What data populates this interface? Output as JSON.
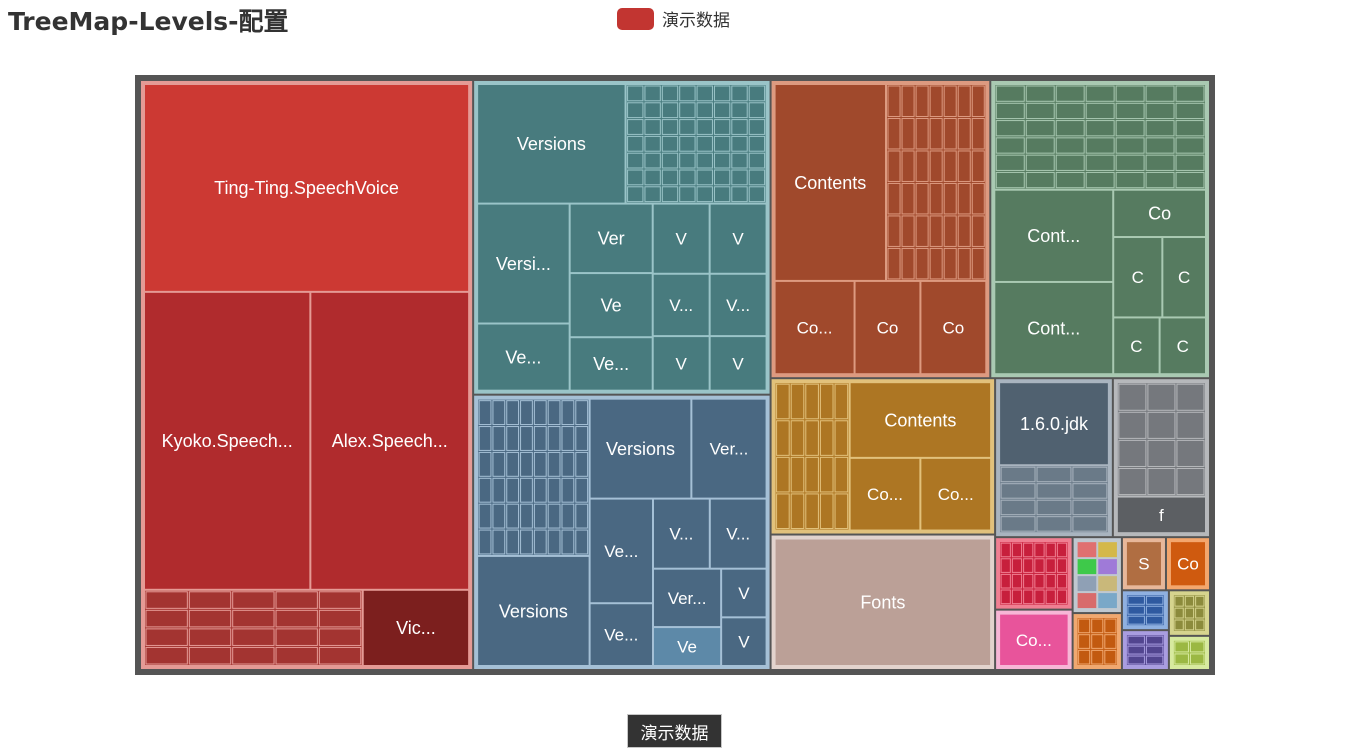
{
  "title": "TreeMap-Levels-配置",
  "legend": {
    "label": "演示数据",
    "color": "#c23531"
  },
  "breadcrumb": {
    "label": "演示数据"
  },
  "chart_data": {
    "type": "treemap",
    "title": "TreeMap-Levels-配置",
    "series_name": "演示数据",
    "nodes": [
      {
        "id": "voices",
        "value": 420,
        "color": "#c23531",
        "border": "#e59a95",
        "children": [
          {
            "label": "Ting-Ting.SpeechVoice",
            "value": 150,
            "color": "#cc3933"
          },
          {
            "label": "Alex.SpeechVoice",
            "value": 105,
            "color": "#b02b2d"
          },
          {
            "label": "Kyoko.SpeechVoice",
            "value": 110,
            "color": "#b02b2d"
          },
          {
            "label": "Vic...",
            "value": 18,
            "color": "#7c1f1e"
          },
          {
            "label": "",
            "value": 37,
            "color": "#a33431",
            "grid": [
              5,
              4
            ]
          }
        ]
      },
      {
        "id": "versions-a",
        "value": 200,
        "color": "#487b7e",
        "border": "#9ac4c8",
        "children": [
          {
            "label": "Versions",
            "value": 40,
            "color": "#487b7e"
          },
          {
            "label": "Versi...",
            "value": 25,
            "color": "#487b7e"
          },
          {
            "label": "Ve...",
            "value": 14,
            "color": "#487b7e"
          },
          {
            "label": "Ver",
            "value": 13,
            "color": "#487b7e"
          },
          {
            "label": "Ve",
            "value": 12,
            "color": "#487b7e"
          },
          {
            "label": "V",
            "value": 9,
            "color": "#487b7e"
          },
          {
            "label": "V",
            "value": 9,
            "color": "#487b7e"
          },
          {
            "label": "Ve...",
            "value": 10,
            "color": "#487b7e"
          },
          {
            "label": "V",
            "value": 7,
            "color": "#487b7e"
          },
          {
            "label": "V",
            "value": 7,
            "color": "#487b7e"
          },
          {
            "label": "Ve...",
            "value": 8,
            "color": "#487b7e"
          },
          {
            "label": "Ve...",
            "value": 8,
            "color": "#487b7e"
          },
          {
            "label": "",
            "value": 38,
            "color": "#487b7e",
            "grid": [
              8,
              7
            ]
          }
        ]
      },
      {
        "id": "contents-a",
        "value": 140,
        "color": "#a0492c",
        "border": "#dd9a80",
        "children": [
          {
            "label": "Contents",
            "value": 50,
            "color": "#a0492c"
          },
          {
            "label": "Co...",
            "value": 17,
            "color": "#a0492c"
          },
          {
            "label": "Co",
            "value": 14,
            "color": "#a0492c"
          },
          {
            "label": "Co",
            "value": 14,
            "color": "#a0492c"
          },
          {
            "label": "",
            "value": 45,
            "color": "#a0492c",
            "grid": [
              7,
              6
            ]
          }
        ]
      },
      {
        "id": "contents-b",
        "value": 140,
        "color": "#567b60",
        "border": "#a9c9b2",
        "children": [
          {
            "label": "Cont...",
            "value": 25,
            "color": "#567b60"
          },
          {
            "label": "Cont...",
            "value": 25,
            "color": "#567b60"
          },
          {
            "label": "Co",
            "value": 10,
            "color": "#567b60"
          },
          {
            "label": "C",
            "value": 9,
            "color": "#567b60"
          },
          {
            "label": "C",
            "value": 8,
            "color": "#567b60"
          },
          {
            "label": "C",
            "value": 6,
            "color": "#567b60"
          },
          {
            "label": "C",
            "value": 6,
            "color": "#567b60"
          },
          {
            "label": "",
            "value": 51,
            "color": "#567b60",
            "grid": [
              7,
              6
            ]
          }
        ]
      },
      {
        "id": "versions-b",
        "value": 175,
        "color": "#4a6882",
        "border": "#a5c0d6",
        "children": [
          {
            "label": "Versions",
            "value": 28,
            "color": "#4a6882"
          },
          {
            "label": "Versions",
            "value": 23,
            "color": "#4a6882"
          },
          {
            "label": "Versions",
            "value": 17,
            "color": "#4a6882"
          },
          {
            "label": "Versions",
            "value": 15,
            "color": "#4a6882"
          },
          {
            "label": "Versi...",
            "value": 9,
            "color": "#4a6882"
          },
          {
            "label": "Versi...",
            "value": 9,
            "color": "#4a6882"
          },
          {
            "label": "Versi...",
            "value": 9,
            "color": "#4a6882"
          },
          {
            "label": "Versi...",
            "value": 9,
            "color": "#4a6882"
          },
          {
            "label": "Ve",
            "value": 6,
            "color": "#5d89a8"
          },
          {
            "label": "V",
            "value": 5,
            "color": "#4a6882"
          },
          {
            "label": "V",
            "value": 5,
            "color": "#4a6882"
          },
          {
            "label": "",
            "value": 40,
            "color": "#4a6882",
            "grid": [
              8,
              6
            ]
          }
        ]
      },
      {
        "id": "contents-c",
        "value": 75,
        "color": "#ad7623",
        "border": "#e2c17b",
        "children": [
          {
            "label": "Contents",
            "value": 25,
            "color": "#ad7623"
          },
          {
            "label": "Co...",
            "value": 12,
            "color": "#ad7623"
          },
          {
            "label": "Co...",
            "value": 12,
            "color": "#ad7623"
          },
          {
            "label": "",
            "value": 26,
            "color": "#ad7623",
            "grid": [
              5,
              4
            ]
          }
        ]
      },
      {
        "id": "fonts",
        "value": 65,
        "color": "#bba097",
        "border": "#e2d3cd",
        "children": [
          {
            "label": "Fonts",
            "value": 65,
            "color": "#bba097"
          }
        ]
      },
      {
        "id": "f-group",
        "value": 33,
        "color": "#5c5f63",
        "border": "#b6b8bb",
        "children": [
          {
            "label": "f",
            "value": 8,
            "color": "#5c5f63"
          },
          {
            "label": "",
            "value": 25,
            "color": "#75787d",
            "grid": [
              3,
              4
            ]
          }
        ]
      },
      {
        "id": "jdk-group",
        "value": 40,
        "color": "#506170",
        "border": "#a9b4bf",
        "children": [
          {
            "label": "1.6.0.jdk",
            "value": 22,
            "color": "#506170"
          },
          {
            "label": "",
            "value": 18,
            "color": "#6a7a88",
            "grid": [
              3,
              4
            ]
          }
        ]
      },
      {
        "id": "misc-red",
        "value": 12,
        "color": "#c71f3c",
        "border": "#f07f92",
        "children": [
          {
            "label": "",
            "value": 12,
            "color": "#c71f3c",
            "grid": [
              6,
              4
            ]
          }
        ]
      },
      {
        "id": "misc-pink",
        "value": 10,
        "color": "#e8549b",
        "border": "#f7b6d6",
        "children": [
          {
            "label": "Co...",
            "value": 10,
            "color": "#e8549b"
          }
        ]
      },
      {
        "id": "misc-orange",
        "value": 6,
        "color": "#c25a10",
        "border": "#f0a870",
        "children": [
          {
            "label": "",
            "value": 6,
            "color": "#c25a10",
            "grid": [
              3,
              3
            ]
          }
        ]
      },
      {
        "id": "misc-sta",
        "value": 5,
        "color": "#b06e42",
        "border": "#e7b79a",
        "children": [
          {
            "label": "Sta",
            "value": 5,
            "color": "#b06e42"
          }
        ]
      },
      {
        "id": "misc-co",
        "value": 5,
        "color": "#cf5a0f",
        "border": "#f3a66d",
        "children": [
          {
            "label": "Co",
            "value": 5,
            "color": "#cf5a0f"
          }
        ]
      },
      {
        "id": "misc-blue",
        "value": 4,
        "color": "#2f5aa0",
        "border": "#8fb0e0",
        "children": [
          {
            "label": "",
            "value": 4,
            "color": "#2f5aa0",
            "grid": [
              2,
              3
            ]
          }
        ]
      },
      {
        "id": "misc-violet",
        "value": 4,
        "color": "#52458f",
        "border": "#a99de0",
        "children": [
          {
            "label": "",
            "value": 4,
            "color": "#52458f",
            "grid": [
              2,
              3
            ]
          }
        ]
      },
      {
        "id": "misc-olive",
        "value": 4,
        "color": "#8c8b3c",
        "border": "#d6d48e",
        "children": [
          {
            "label": "",
            "value": 4,
            "color": "#8c8b3c",
            "grid": [
              3,
              3
            ]
          }
        ]
      },
      {
        "id": "misc-lime",
        "value": 3,
        "color": "#9bb843",
        "border": "#d7ea9f",
        "children": [
          {
            "label": "",
            "value": 3,
            "color": "#9bb843",
            "grid": [
              2,
              2
            ]
          }
        ]
      },
      {
        "id": "misc-tiny",
        "value": 8,
        "color": "#7a8a9a",
        "border": "#c0c8d0",
        "children": [
          {
            "label": "",
            "value": 1,
            "color": "#e07070"
          },
          {
            "label": "",
            "value": 1,
            "color": "#d4b84a"
          },
          {
            "label": "",
            "value": 1,
            "color": "#3ec94a"
          },
          {
            "label": "",
            "value": 1,
            "color": "#9f7ad8"
          },
          {
            "label": "",
            "value": 1,
            "color": "#8fa0b5"
          },
          {
            "label": "",
            "value": 1,
            "color": "#d86b6b"
          },
          {
            "label": "",
            "value": 1,
            "color": "#c9b87a"
          },
          {
            "label": "",
            "value": 1,
            "color": "#7aa8c8"
          }
        ]
      }
    ]
  }
}
